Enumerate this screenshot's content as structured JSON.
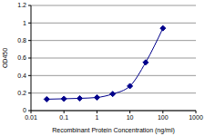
{
  "chart_data": {
    "type": "line",
    "x_label": "Recombinant Protein Concentration (ng/ml)",
    "y_label": "OD450",
    "x": [
      0.03,
      0.1,
      0.3,
      1,
      3,
      10,
      30,
      100
    ],
    "values": [
      0.13,
      0.135,
      0.14,
      0.15,
      0.19,
      0.28,
      0.55,
      0.94
    ],
    "color": "#00008b",
    "marker": "diamond",
    "log": "x",
    "xlim": [
      0.01,
      1000
    ],
    "xticks": [
      0.01,
      0.1,
      1,
      10,
      100,
      1000
    ],
    "ylim": [
      0,
      1.2
    ],
    "yticks": [
      0,
      0.2,
      0.4,
      0.6,
      0.8,
      1,
      1.2
    ],
    "grid": true
  }
}
